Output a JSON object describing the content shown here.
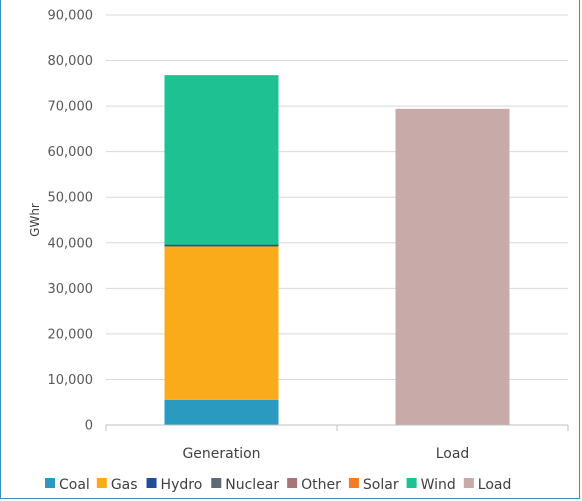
{
  "chart_data": {
    "type": "bar",
    "stacked": true,
    "ylabel": "GWhr",
    "xlabel": "",
    "ylim": [
      0,
      90000
    ],
    "ytick_step": 10000,
    "grid": true,
    "legend_position": "bottom",
    "categories": [
      "Generation",
      "Load"
    ],
    "series": [
      {
        "name": "Coal",
        "color": "#2a9ac0",
        "values": [
          5500,
          0
        ]
      },
      {
        "name": "Gas",
        "color": "#f9ab19",
        "values": [
          33700,
          0
        ]
      },
      {
        "name": "Hydro",
        "color": "#1f4e9a",
        "values": [
          400,
          0
        ]
      },
      {
        "name": "Nuclear",
        "color": "#5b6a75",
        "values": [
          0,
          0
        ]
      },
      {
        "name": "Other",
        "color": "#a87676",
        "values": [
          0,
          0
        ]
      },
      {
        "name": "Solar",
        "color": "#f57c20",
        "values": [
          0,
          0
        ]
      },
      {
        "name": "Wind",
        "color": "#1ec192",
        "values": [
          37200,
          0
        ]
      },
      {
        "name": "Load",
        "color": "#c8aaa8",
        "values": [
          0,
          69400
        ]
      }
    ]
  }
}
